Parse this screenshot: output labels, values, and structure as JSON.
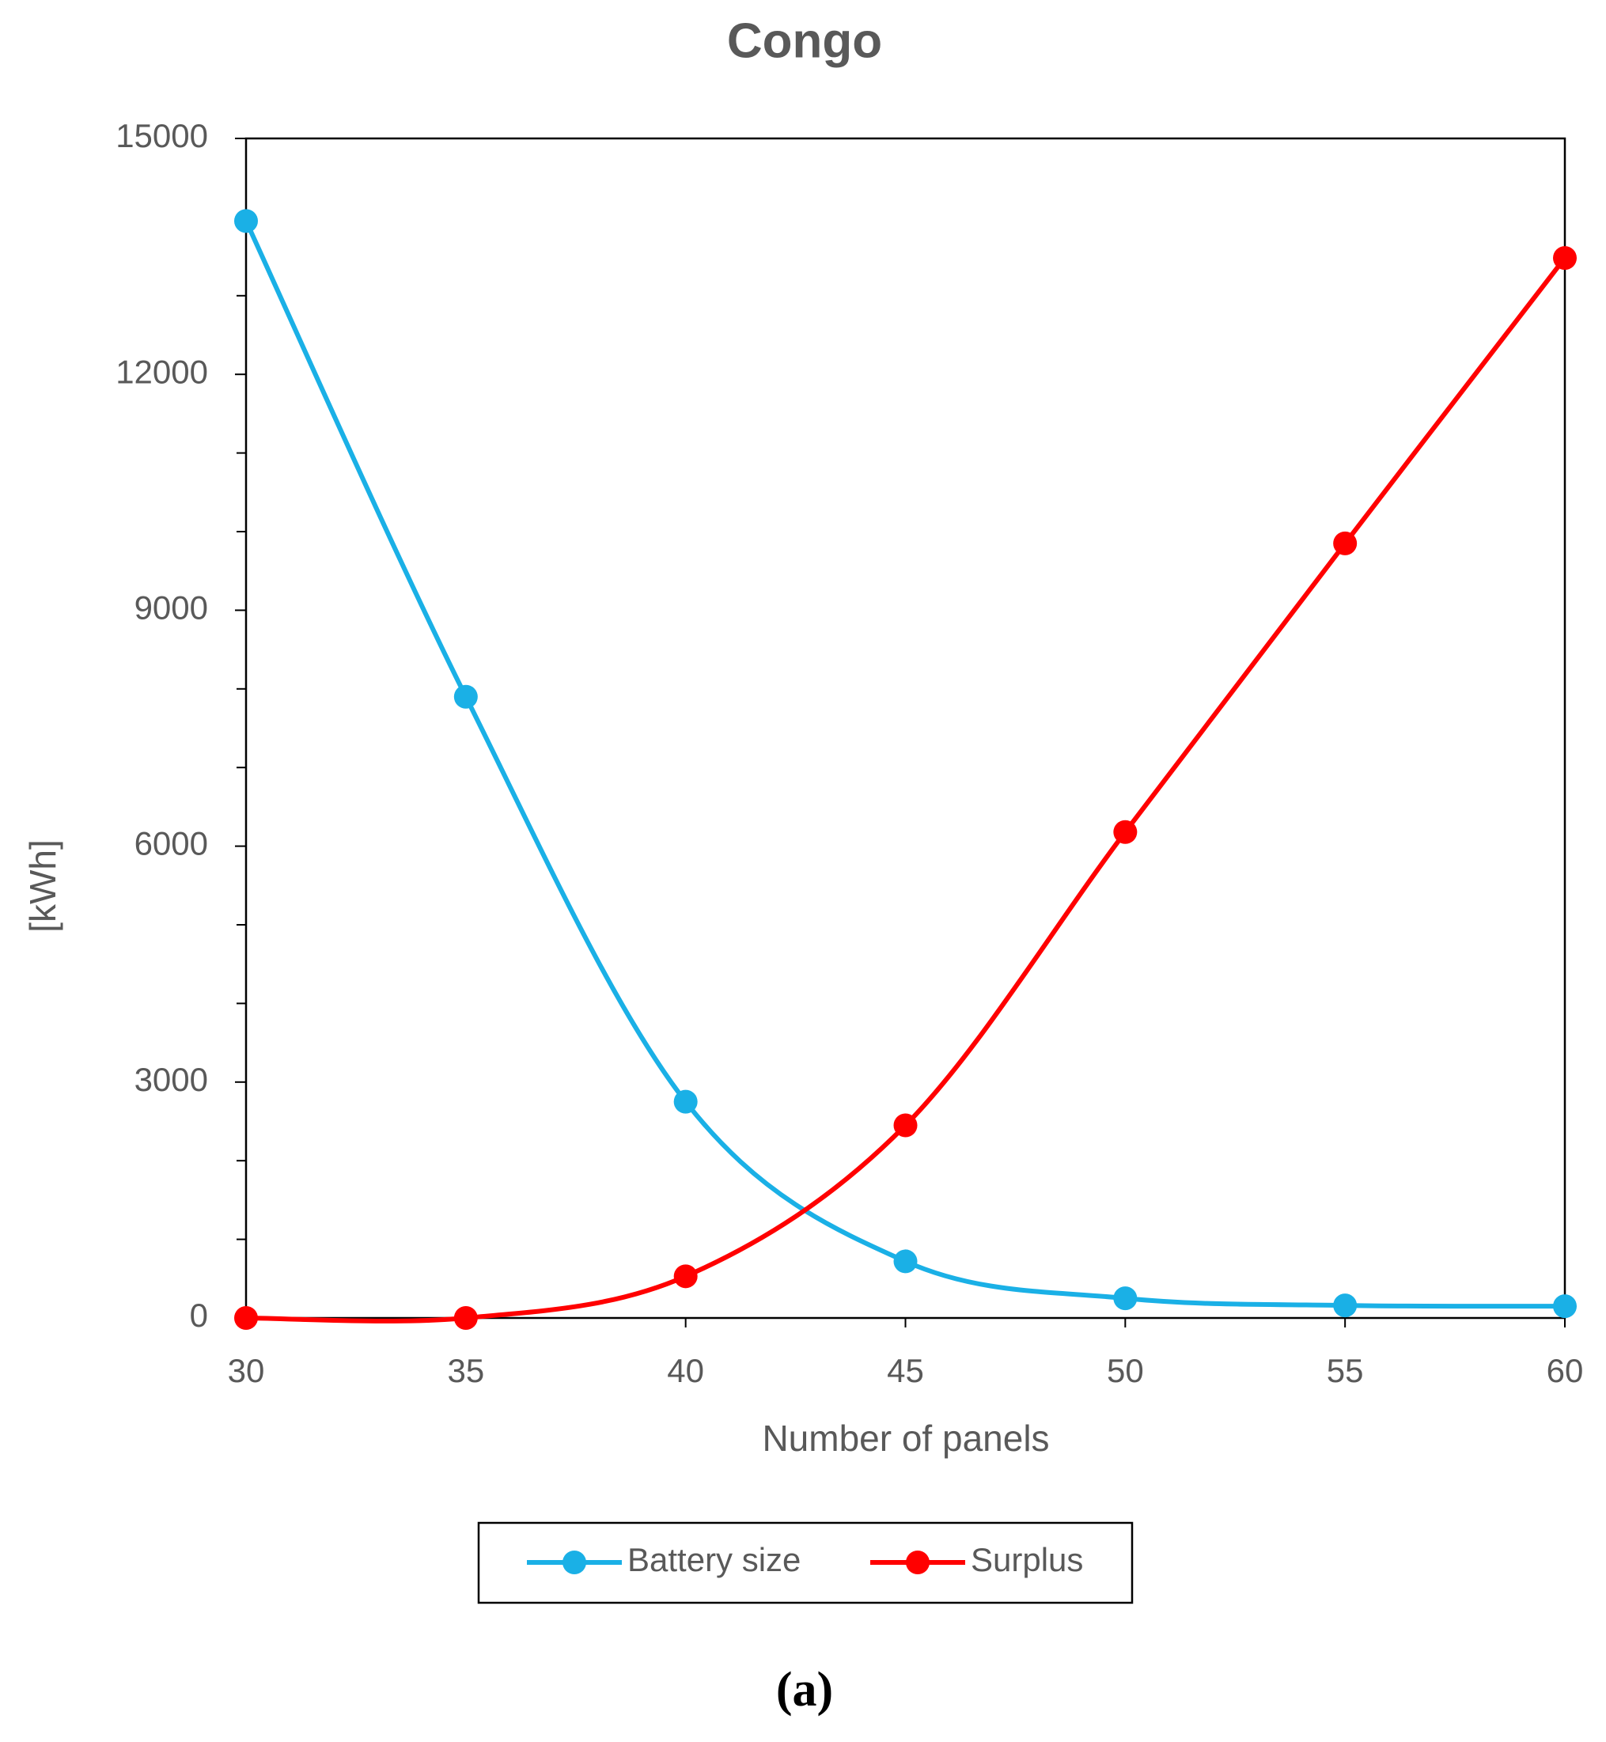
{
  "chart_data": {
    "type": "line",
    "title": "Congo",
    "x_label": "Number of panels",
    "y_label": "[kWh]",
    "x": [
      30,
      35,
      40,
      45,
      50,
      55,
      60
    ],
    "series": [
      {
        "name": "Battery size",
        "color": "#1ab0e6",
        "values": [
          13950,
          7900,
          2750,
          720,
          250,
          160,
          150
        ]
      },
      {
        "name": "Surplus",
        "color": "#ff0000",
        "values": [
          0,
          0,
          530,
          2450,
          6180,
          9850,
          13480
        ]
      }
    ],
    "xlim": [
      30,
      60
    ],
    "xticks": [
      30,
      35,
      40,
      45,
      50,
      55,
      60
    ],
    "ylim": [
      0,
      15000
    ],
    "yticks": [
      0,
      3000,
      6000,
      9000,
      12000,
      15000
    ],
    "yminorticks": [
      1000,
      2000,
      4000,
      5000,
      7000,
      8000,
      10000,
      11000,
      13000,
      14000
    ],
    "grid": false,
    "smooth": true,
    "legend": "bottom",
    "caption": "(a)"
  }
}
